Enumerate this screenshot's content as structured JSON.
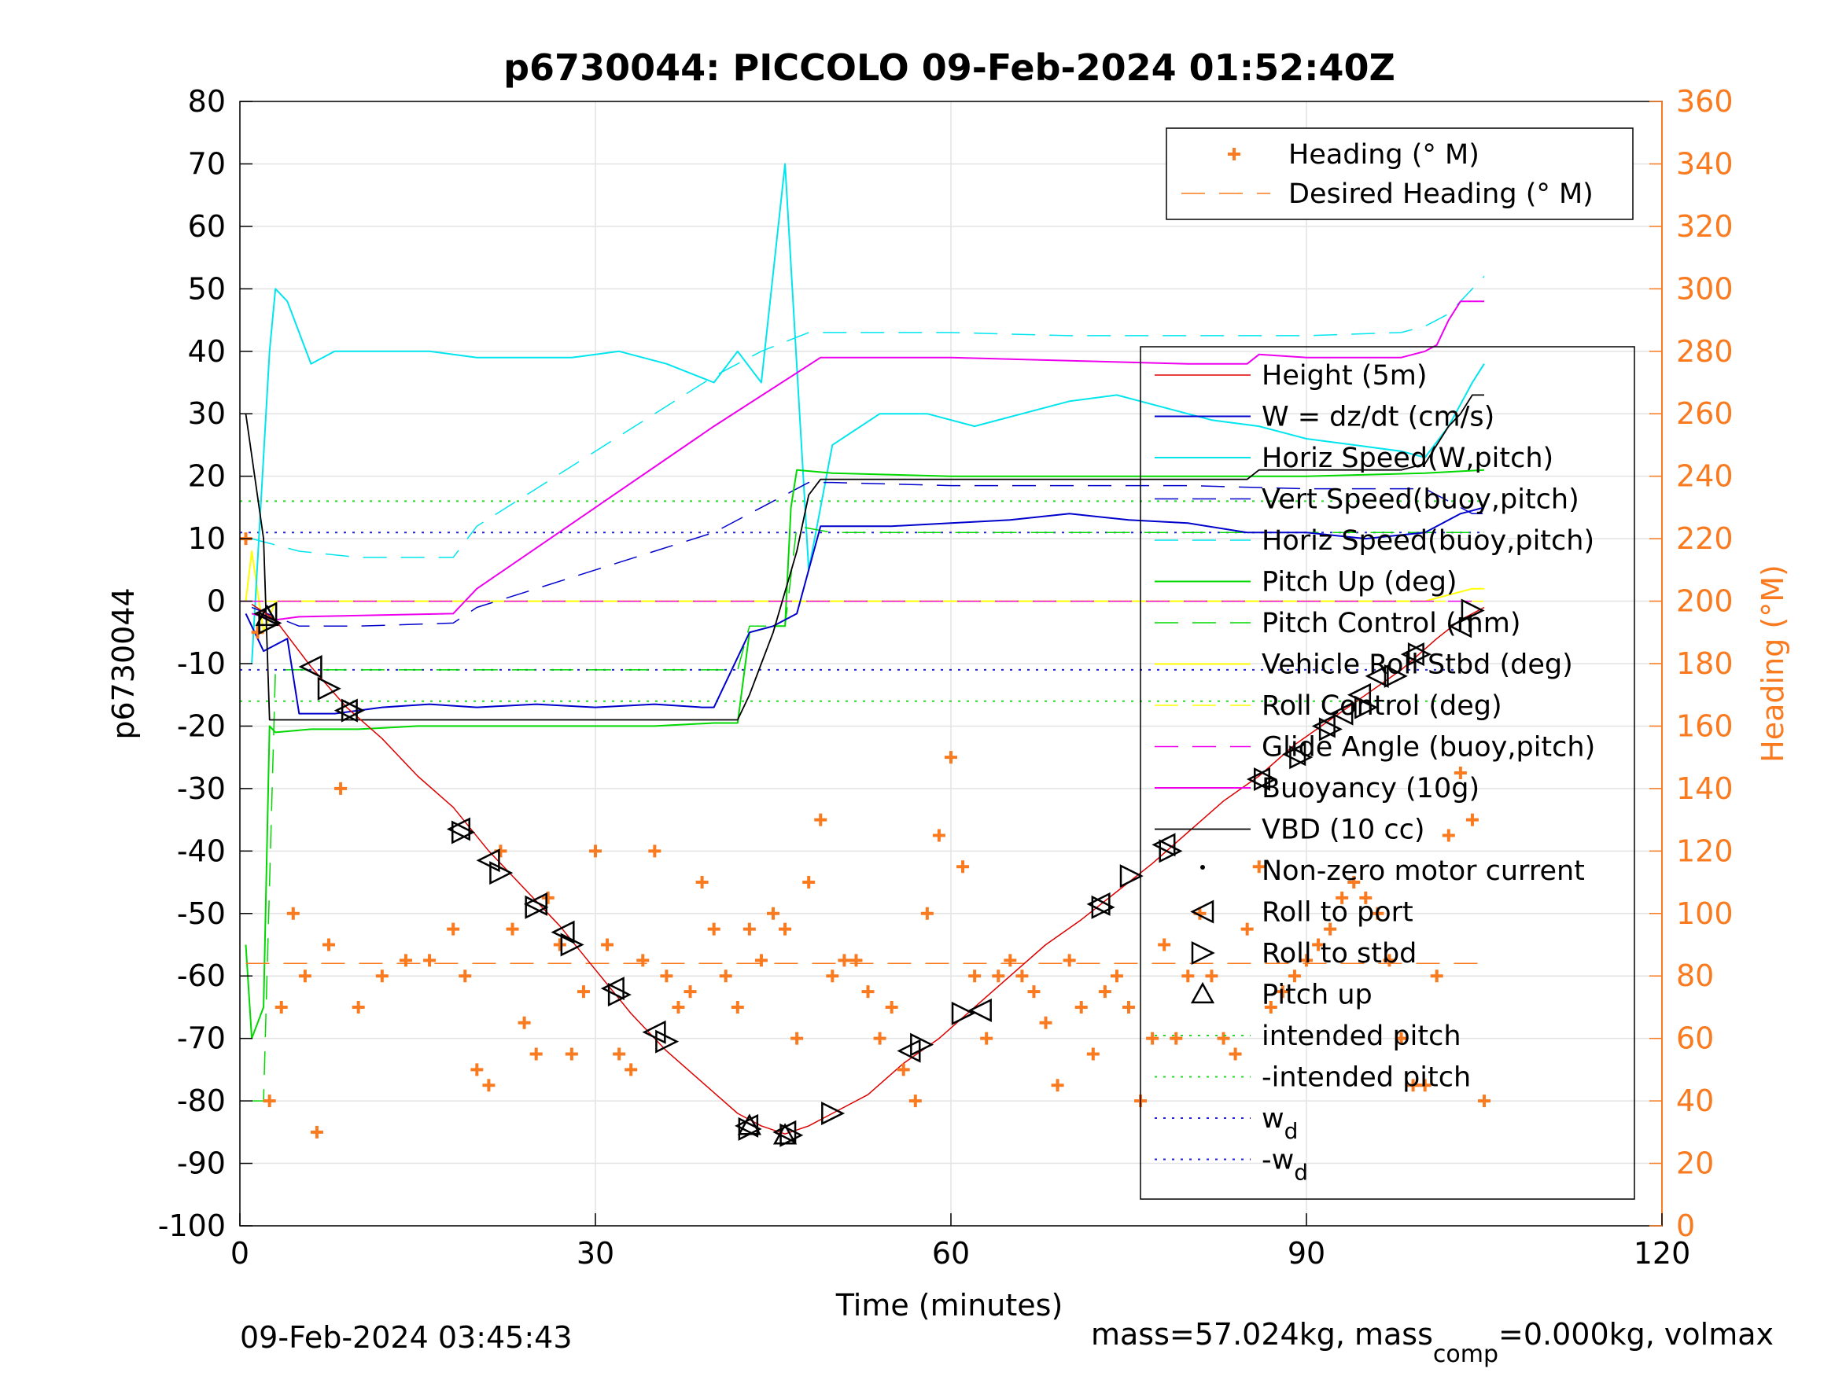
{
  "title": "p6730044: PICCOLO 09-Feb-2024 01:52:40Z",
  "footer_left": "09-Feb-2024 03:45:43",
  "footer_right": {
    "mass": "mass=57.024kg, mass",
    "comp_sub": "comp",
    "rest": "=0.000kg, volmax"
  },
  "colors": {
    "orange": "#f97a1f",
    "cyan": "#00e5ee",
    "blue": "#0000cc",
    "green": "#00d800",
    "yellow": "#ffff00",
    "magenta": "#ee00ee",
    "red": "#dd0000",
    "black": "#000000",
    "dotted_green": "#22dd22",
    "dotted_blue": "#2222dd"
  },
  "chart_data": {
    "type": "line",
    "xlabel": "Time (minutes)",
    "ylabel": "p6730044",
    "y2label": "Heading (°M)",
    "xlim": [
      0,
      120
    ],
    "ylim": [
      -100,
      80
    ],
    "y2lim": [
      0,
      360
    ],
    "xticks": [
      0,
      30,
      60,
      90,
      120
    ],
    "yticks": [
      -100,
      -90,
      -80,
      -70,
      -60,
      -50,
      -40,
      -30,
      -20,
      -10,
      0,
      10,
      20,
      30,
      40,
      50,
      60,
      70,
      80
    ],
    "y2ticks": [
      0,
      20,
      40,
      60,
      80,
      100,
      120,
      140,
      160,
      180,
      200,
      220,
      240,
      260,
      280,
      300,
      320,
      340,
      360
    ],
    "grid": true,
    "legend_heading": {
      "placement": "top-right",
      "entries": [
        "Heading (° M)",
        "Desired Heading (° M)"
      ]
    },
    "legend_main": {
      "placement": "right",
      "entries": [
        "Height (5m)",
        "W = dz/dt (cm/s)",
        "Horiz Speed(W,pitch)",
        "Vert Speed(buoy,pitch)",
        "Horiz Speed(buoy,pitch)",
        "Pitch Up (deg)",
        "Pitch Control (mm)",
        "Vehicle Roll Stbd (deg)",
        "Roll Control (deg)",
        "Glide Angle (buoy,pitch)",
        "Buoyancy (10g)",
        "VBD (10 cc)",
        "Non-zero motor current",
        "Roll to port",
        "Roll to stbd",
        "Pitch up",
        "intended pitch",
        "-intended pitch",
        "w",
        "-w"
      ],
      "sub_d": "d"
    },
    "series": [
      {
        "name": "Height (5m)",
        "x": [
          1,
          3,
          6,
          9,
          12,
          15,
          18,
          21,
          24,
          27,
          30,
          33,
          36,
          39,
          42,
          44,
          46,
          48,
          50,
          53,
          56,
          59,
          62,
          65,
          68,
          71,
          74,
          77,
          80,
          83,
          86,
          89,
          92,
          95,
          98,
          101,
          103,
          105
        ],
        "y": [
          -0.5,
          -3,
          -10.5,
          -17,
          -22,
          -28,
          -33,
          -40,
          -46,
          -52,
          -59,
          -66,
          -72,
          -77,
          -82,
          -84,
          -85.3,
          -84,
          -82,
          -79,
          -74,
          -70,
          -65,
          -60,
          -55,
          -51,
          -46.5,
          -42,
          -37,
          -32,
          -28,
          -23,
          -19,
          -15,
          -11,
          -6,
          -3,
          -1
        ]
      },
      {
        "name": "W = dz/dt (cm/s)",
        "x": [
          0.5,
          2,
          4,
          5,
          8,
          12,
          16,
          20,
          25,
          30,
          35,
          39,
          40,
          43,
          45,
          47,
          48,
          49,
          55,
          60,
          65,
          70,
          75,
          80,
          85,
          90,
          95,
          100,
          103,
          105
        ],
        "y": [
          -2,
          -8,
          -6,
          -18,
          -18,
          -17,
          -16.5,
          -17,
          -16.5,
          -17,
          -16.5,
          -17,
          -17,
          -5,
          -4,
          -2,
          5,
          12,
          12,
          12.5,
          13,
          14,
          13,
          12.5,
          11,
          11,
          10,
          11,
          14,
          15
        ]
      },
      {
        "name": "Horiz Speed(W,pitch)",
        "x": [
          1,
          2.5,
          3,
          4,
          6,
          8,
          12,
          16,
          20,
          24,
          28,
          32,
          36,
          40,
          42,
          44,
          46,
          48,
          50,
          54,
          58,
          62,
          66,
          70,
          74,
          78,
          82,
          86,
          90,
          94,
          98,
          100,
          102,
          104,
          105
        ],
        "y": [
          -10,
          40,
          50,
          48,
          38,
          40,
          40,
          40,
          39,
          39,
          39,
          40,
          38,
          35,
          40,
          35,
          70,
          5,
          25,
          30,
          30,
          28,
          30,
          32,
          33,
          31,
          29,
          28,
          26,
          25,
          24,
          23,
          28,
          35,
          38
        ]
      },
      {
        "name": "Vert Speed(buoy,pitch)",
        "x": [
          1,
          5,
          10,
          18,
          20,
          25,
          30,
          35,
          40,
          44,
          48,
          50,
          60,
          70,
          80,
          90,
          100,
          104,
          105
        ],
        "y": [
          -1,
          -4,
          -4,
          -3.5,
          -1,
          2,
          5,
          8,
          11,
          15,
          19,
          19,
          18.5,
          18.5,
          18.5,
          18,
          18,
          14,
          14
        ]
      },
      {
        "name": "Horiz Speed(buoy,pitch)",
        "x": [
          1,
          5,
          10,
          18,
          20,
          25,
          30,
          35,
          40,
          44,
          48,
          50,
          60,
          70,
          80,
          90,
          98,
          100,
          102,
          104,
          105
        ],
        "y": [
          10,
          8,
          7,
          7,
          12,
          18,
          24,
          30,
          36,
          40,
          43,
          43,
          43,
          42.5,
          42.5,
          42.5,
          43,
          44,
          46,
          50,
          52
        ]
      },
      {
        "name": "Pitch Up (deg)",
        "x": [
          0.5,
          1,
          2,
          2.5,
          3,
          6,
          10,
          15,
          20,
          25,
          30,
          35,
          40,
          42,
          43,
          45,
          46,
          46.5,
          47,
          50,
          60,
          70,
          80,
          90,
          100,
          105
        ],
        "y": [
          -55,
          -70,
          -65,
          -20,
          -21,
          -20.5,
          -20.5,
          -20,
          -20,
          -20,
          -20,
          -20,
          -19.5,
          -19.5,
          -5,
          -4,
          -4,
          15,
          21,
          20.5,
          20,
          20,
          20,
          20,
          20.5,
          21
        ]
      },
      {
        "name": "Pitch Control (mm)",
        "x": [
          1,
          2,
          3,
          10,
          20,
          30,
          40,
          42,
          43,
          45,
          46,
          47,
          50,
          60,
          70,
          80,
          90,
          100,
          105
        ],
        "y": [
          -80,
          -80,
          -11,
          -11,
          -11,
          -11,
          -11,
          -11,
          -4,
          -4,
          -4,
          12,
          11,
          11,
          11,
          11,
          11,
          11,
          11
        ]
      },
      {
        "name": "Vehicle Roll Stbd (deg)",
        "x": [
          0.5,
          1,
          2,
          3,
          6,
          10,
          20,
          30,
          40,
          50,
          60,
          70,
          80,
          90,
          100,
          104,
          105
        ],
        "y": [
          0,
          8,
          -5,
          0,
          0,
          0,
          0,
          0,
          0,
          0,
          0,
          0,
          0,
          0,
          0,
          2,
          2
        ]
      },
      {
        "name": "Roll Control (deg)",
        "x": [
          1,
          5,
          10,
          20,
          30,
          40,
          50,
          60,
          70,
          80,
          90,
          100,
          105
        ],
        "y": [
          0,
          0,
          0,
          0,
          0,
          0,
          0,
          0,
          0,
          0,
          0,
          0,
          0
        ]
      },
      {
        "name": "Glide Angle (buoy,pitch)",
        "x": [
          0,
          105
        ],
        "y": [
          0,
          0
        ]
      },
      {
        "name": "Buoyancy (10g)",
        "x": [
          1,
          3,
          5,
          18,
          20,
          30,
          40,
          49,
          50,
          60,
          70,
          80,
          85,
          86,
          90,
          98,
          100,
          101,
          102,
          103,
          105
        ],
        "y": [
          -2,
          -3,
          -2.5,
          -2,
          2,
          15,
          28,
          39,
          39,
          39,
          38.5,
          38,
          38,
          39.5,
          39,
          39,
          40,
          41,
          45,
          48,
          48
        ]
      },
      {
        "name": "VBD (10 cc)",
        "x": [
          0.5,
          2,
          2.5,
          12,
          20,
          30,
          40,
          42,
          43,
          44,
          45,
          47,
          48,
          49,
          50,
          60,
          70,
          80,
          85,
          86,
          90,
          98,
          100,
          101,
          102,
          103,
          104,
          105
        ],
        "y": [
          30,
          10,
          -19,
          -19,
          -19,
          -19,
          -19,
          -19,
          -15,
          -10,
          -5,
          8,
          17,
          19.5,
          19.5,
          19.5,
          19.5,
          19.5,
          19.5,
          21,
          21,
          21,
          22,
          25,
          28,
          30,
          33,
          33
        ]
      },
      {
        "name": "Heading (° M)",
        "x": [
          0.5,
          1.5,
          2.5,
          3.5,
          4.5,
          5.5,
          6.5,
          7.5,
          8.5,
          10,
          12,
          14,
          16,
          18,
          19,
          20,
          21,
          22,
          23,
          24,
          25,
          26,
          27,
          28,
          29,
          30,
          31,
          32,
          33,
          34,
          35,
          36,
          37,
          38,
          39,
          40,
          41,
          42,
          43,
          44,
          45,
          46,
          47,
          48,
          49,
          50,
          51,
          52,
          53,
          54,
          55,
          56,
          57,
          58,
          59,
          60,
          61,
          62,
          63,
          64,
          65,
          66,
          67,
          68,
          69,
          70,
          71,
          72,
          73,
          74,
          75,
          76,
          77,
          78,
          79,
          80,
          81,
          82,
          83,
          84,
          85,
          86,
          87,
          88,
          89,
          90,
          91,
          92,
          93,
          94,
          95,
          96,
          97,
          98,
          99,
          100,
          101,
          102,
          103,
          104,
          105
        ],
        "y": [
          220,
          190,
          40,
          70,
          100,
          80,
          30,
          90,
          140,
          70,
          80,
          85,
          85,
          95,
          80,
          50,
          45,
          120,
          95,
          65,
          55,
          105,
          90,
          55,
          75,
          120,
          90,
          55,
          50,
          85,
          120,
          80,
          70,
          75,
          110,
          95,
          80,
          70,
          95,
          85,
          100,
          95,
          60,
          110,
          130,
          80,
          85,
          85,
          75,
          60,
          70,
          50,
          40,
          100,
          125,
          150,
          115,
          80,
          60,
          80,
          85,
          80,
          75,
          65,
          45,
          85,
          70,
          55,
          75,
          80,
          70,
          40,
          60,
          90,
          60,
          80,
          100,
          80,
          60,
          55,
          95,
          115,
          70,
          75,
          80,
          85,
          90,
          95,
          105,
          110,
          105,
          100,
          85,
          60,
          45,
          45,
          80,
          125,
          145,
          130,
          40
        ]
      },
      {
        "name": "Desired Heading (° M)",
        "x": [
          0.5,
          105
        ],
        "y": [
          84,
          84
        ]
      },
      {
        "name": "Roll to port",
        "x": [
          2.2,
          6,
          9,
          18.5,
          21,
          25,
          27.3,
          31.5,
          35,
          42.8,
          46,
          56.5,
          62.5,
          72.5,
          78,
          86,
          89,
          91.5,
          93,
          94.5,
          96,
          99,
          103
        ],
        "y": [
          -2,
          -10.5,
          -17.5,
          -36.5,
          -41.5,
          -48.5,
          -53,
          -62,
          -69,
          -84,
          -85,
          -72,
          -65.5,
          -48.5,
          -39,
          -28.5,
          -24.5,
          -20,
          -18,
          -15,
          -12,
          -8.5,
          -4
        ]
      },
      {
        "name": "Roll to stbd",
        "x": [
          2.5,
          7.5,
          9.5,
          18.8,
          22,
          25,
          28,
          32,
          36,
          43,
          46.5,
          50,
          57.5,
          61,
          72.8,
          75.2,
          78.5,
          86.5,
          89.5,
          92,
          95,
          97.5,
          99.5,
          104
        ],
        "y": [
          -3.5,
          -14,
          -17.5,
          -37,
          -43.5,
          -49,
          -55,
          -63,
          -70.5,
          -84.5,
          -85.5,
          -82,
          -71,
          -66,
          -49,
          -44,
          -40,
          -28.5,
          -25,
          -20.5,
          -17,
          -12,
          -8.5,
          -1.5
        ]
      },
      {
        "name": "Pitch up",
        "x": [
          2.3,
          43,
          46
        ],
        "y": [
          -2.5,
          -84,
          -85.5
        ]
      },
      {
        "name": "intended pitch",
        "x": [
          0,
          105
        ],
        "y": [
          16,
          16
        ]
      },
      {
        "name": "-intended pitch",
        "x": [
          0,
          105
        ],
        "y": [
          -16,
          -16
        ]
      },
      {
        "name": "w",
        "x": [
          0,
          105
        ],
        "y": [
          11,
          11
        ]
      },
      {
        "name": "-w",
        "x": [
          0,
          105
        ],
        "y": [
          -11,
          -11
        ]
      }
    ]
  }
}
